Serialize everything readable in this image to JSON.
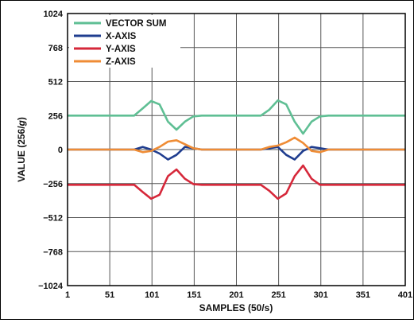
{
  "chart_data": {
    "type": "line",
    "xlabel": "SAMPLES (50/s)",
    "ylabel_prefix": "VALUE (256/",
    "ylabel_unit": "g",
    "ylabel_suffix": ")",
    "xlim": [
      1,
      401
    ],
    "ylim": [
      -1024,
      1024
    ],
    "x_ticks": [
      "1",
      "51",
      "101",
      "151",
      "201",
      "251",
      "301",
      "351",
      "401"
    ],
    "y_ticks": [
      "1024",
      "768",
      "512",
      "256",
      "0",
      "−256",
      "−512",
      "−768",
      "−1024"
    ],
    "grid": true,
    "legend_position": "top-left",
    "series": [
      {
        "name": "VECTOR SUM",
        "color": "#5fbf94",
        "x": [
          1,
          80,
          90,
          100,
          110,
          120,
          130,
          140,
          150,
          160,
          230,
          240,
          250,
          260,
          270,
          280,
          290,
          300,
          310,
          401
        ],
        "y": [
          256,
          256,
          310,
          365,
          340,
          210,
          150,
          210,
          250,
          256,
          256,
          300,
          370,
          340,
          210,
          120,
          210,
          250,
          256,
          256
        ]
      },
      {
        "name": "X-AXIS",
        "color": "#1f3d8f",
        "x": [
          1,
          80,
          90,
          100,
          110,
          120,
          130,
          140,
          150,
          160,
          230,
          240,
          250,
          260,
          270,
          280,
          290,
          300,
          310,
          401
        ],
        "y": [
          0,
          0,
          20,
          0,
          -30,
          -75,
          -40,
          20,
          10,
          0,
          0,
          10,
          20,
          -40,
          -75,
          -10,
          20,
          10,
          0,
          0
        ]
      },
      {
        "name": "Y-AXIS",
        "color": "#d6283a",
        "x": [
          1,
          80,
          90,
          100,
          110,
          120,
          130,
          140,
          150,
          160,
          230,
          240,
          250,
          260,
          270,
          280,
          290,
          300,
          310,
          401
        ],
        "y": [
          -265,
          -265,
          -320,
          -370,
          -340,
          -200,
          -150,
          -220,
          -260,
          -265,
          -265,
          -310,
          -370,
          -330,
          -200,
          -120,
          -220,
          -265,
          -265,
          -265
        ]
      },
      {
        "name": "Z-AXIS",
        "color": "#ef8c35",
        "x": [
          1,
          80,
          90,
          100,
          110,
          120,
          130,
          140,
          150,
          160,
          230,
          240,
          250,
          260,
          270,
          280,
          290,
          300,
          310,
          401
        ],
        "y": [
          0,
          0,
          -20,
          -10,
          20,
          60,
          70,
          40,
          10,
          0,
          0,
          20,
          30,
          55,
          90,
          50,
          -10,
          -20,
          0,
          0
        ]
      }
    ]
  }
}
